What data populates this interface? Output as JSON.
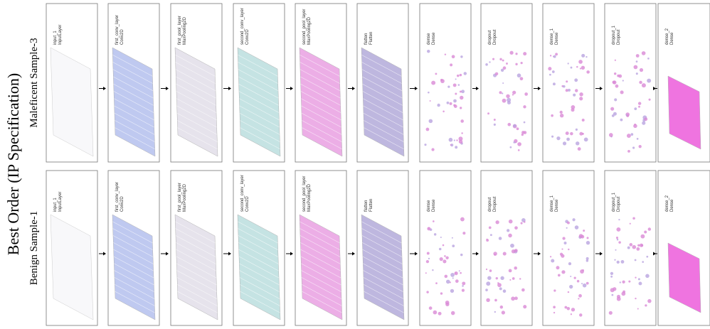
{
  "title": "Best Order (IP Specification)",
  "rows": [
    {
      "label": "Maleficent Sample-3",
      "layers": [
        {
          "name": "input_1",
          "type": "InputLayer"
        },
        {
          "name": "first_conv_layer",
          "type": "Conv2D"
        },
        {
          "name": "first_pool_layer",
          "type": "MaxPooling2D"
        },
        {
          "name": "second_conv_layer",
          "type": "Conv2D"
        },
        {
          "name": "second_pool_layer",
          "type": "MaxPooling2D"
        },
        {
          "name": "flatten",
          "type": "Flatten"
        },
        {
          "name": "dense",
          "type": "Dense"
        },
        {
          "name": "dropout",
          "type": "Dropout"
        },
        {
          "name": "dense_1",
          "type": "Dense"
        },
        {
          "name": "dropout_1",
          "type": "Dropout"
        },
        {
          "name": "dense_2",
          "type": "Dense"
        }
      ]
    },
    {
      "label": "Benign Sample-1",
      "layers": [
        {
          "name": "input_1",
          "type": "InputLayer"
        },
        {
          "name": "first_conv_layer",
          "type": "Conv2D"
        },
        {
          "name": "first_pool_layer",
          "type": "MaxPooling2D"
        },
        {
          "name": "second_conv_layer",
          "type": "Conv2D"
        },
        {
          "name": "second_pool_layer",
          "type": "MaxPooling2D"
        },
        {
          "name": "flatten",
          "type": "Flatten"
        },
        {
          "name": "dense",
          "type": "Dense"
        },
        {
          "name": "dropout",
          "type": "Dropout"
        },
        {
          "name": "dense_1",
          "type": "Dense"
        },
        {
          "name": "dropout_1",
          "type": "Dropout"
        },
        {
          "name": "dense_2",
          "type": "Dense"
        }
      ]
    }
  ]
}
